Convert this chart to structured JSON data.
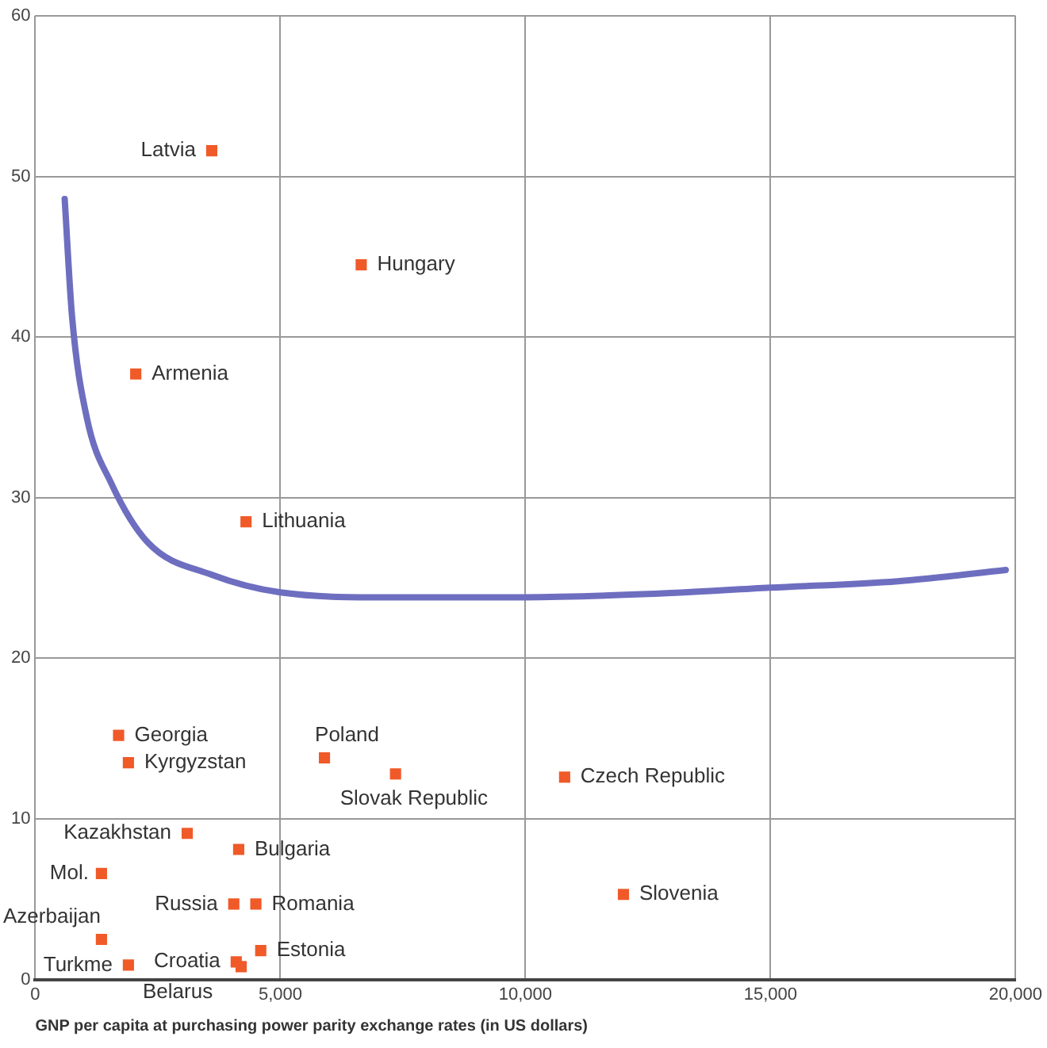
{
  "chart_data": {
    "type": "scatter",
    "xlabel": "GNP per capita at purchasing power parity exchange rates (in US dollars)",
    "xlim": [
      0,
      20000
    ],
    "xticks": [
      0,
      {
        "value": 5000,
        "label": "5,000"
      },
      {
        "value": 10000,
        "label": "10,000"
      },
      {
        "value": 15000,
        "label": "15,000"
      },
      {
        "value": 20000,
        "label": "20,000"
      }
    ],
    "ylim": [
      0,
      60
    ],
    "yticks": [
      0,
      10,
      20,
      30,
      40,
      50,
      60
    ],
    "grid": true,
    "legend": false,
    "marker": "square",
    "series": [
      {
        "color": "#f05a28",
        "x": [
          3600,
          6650,
          2050,
          4300,
          1700,
          1900,
          5900,
          7350,
          10800,
          3100,
          4150,
          1350,
          4050,
          4500,
          12000,
          1350,
          4600,
          1900,
          4100,
          4200
        ],
        "values": [
          51.6,
          44.5,
          37.7,
          28.5,
          15.2,
          13.5,
          13.8,
          12.8,
          12.6,
          9.1,
          8.1,
          6.6,
          4.7,
          4.7,
          5.3,
          2.5,
          1.8,
          0.9,
          1.1,
          0.8
        ]
      },
      {
        "type": "line",
        "color": "#6e6ec0",
        "marker": "none",
        "x": [
          600,
          750,
          1050,
          1550,
          2300,
          3600,
          5000,
          7100,
          10000,
          12500,
          15000,
          17600,
          19800
        ],
        "values": [
          48.6,
          41.3,
          35,
          30.9,
          27.2,
          25.2,
          24.1,
          23.8,
          23.8,
          24,
          24.4,
          24.8,
          25.5
        ]
      }
    ],
    "annotations": [
      {
        "text": "Latvia",
        "x": 3600,
        "y": 51.6
      },
      {
        "text": "Hungary",
        "x": 6650,
        "y": 44.5
      },
      {
        "text": "Armenia",
        "x": 2050,
        "y": 37.7
      },
      {
        "text": "Lithuania",
        "x": 4300,
        "y": 28.5
      },
      {
        "text": "Georgia",
        "x": 1700,
        "y": 15.2
      },
      {
        "text": "Kyrgyzstan",
        "x": 1900,
        "y": 13.5
      },
      {
        "text": "Poland",
        "x": 5900,
        "y": 13.8
      },
      {
        "text": "Slovak Republic",
        "x": 7350,
        "y": 12.8
      },
      {
        "text": "Czech Republic",
        "x": 10800,
        "y": 12.6
      },
      {
        "text": "Kazakhstan",
        "x": 3100,
        "y": 9.1
      },
      {
        "text": "Bulgaria",
        "x": 4150,
        "y": 8.1
      },
      {
        "text": "Mol.",
        "x": 1350,
        "y": 6.6
      },
      {
        "text": "Russia",
        "x": 4050,
        "y": 4.7
      },
      {
        "text": "Romania",
        "x": 4500,
        "y": 4.7
      },
      {
        "text": "Slovenia",
        "x": 12000,
        "y": 5.3
      },
      {
        "text": "Azerbaijan",
        "x": 1350,
        "y": 2.5
      },
      {
        "text": "Estonia",
        "x": 4600,
        "y": 1.8
      },
      {
        "text": "Turkme",
        "x": 1900,
        "y": 0.9
      },
      {
        "text": "Croatia",
        "x": 4100,
        "y": 1.1
      },
      {
        "text": "Belarus",
        "x": 4200,
        "y": 0.8
      }
    ]
  }
}
